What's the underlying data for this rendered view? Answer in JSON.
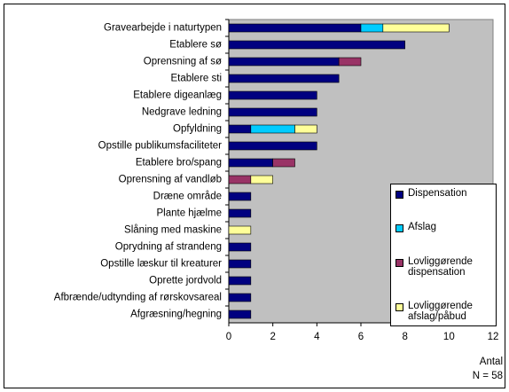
{
  "chart_data": {
    "type": "stacked-barh",
    "categories": [
      "Gravearbejde i naturtypen",
      "Etablere sø",
      "Oprensning af sø",
      "Etablere sti",
      "Etablere digeanlæg",
      "Nedgrave ledning",
      "Opfyldning",
      "Opstille publikumsfaciliteter",
      "Etablere bro/spang",
      "Oprensning af vandløb",
      "Dræne område",
      "Plante hjælme",
      "Slåning med maskine",
      "Oprydning af strandeng",
      "Opstille læskur til kreaturer",
      "Oprette jordvold",
      "Afbrænde/udtynding af rørskovsareal",
      "Afgræsning/hegning"
    ],
    "series": [
      {
        "name": "Dispensation",
        "color": "#000080",
        "values": [
          6,
          8,
          5,
          5,
          4,
          4,
          1,
          4,
          2,
          0,
          1,
          1,
          0,
          1,
          1,
          1,
          1,
          1
        ]
      },
      {
        "name": "Afslag",
        "color": "#00ccff",
        "values": [
          1,
          0,
          0,
          0,
          0,
          0,
          2,
          0,
          0,
          0,
          0,
          0,
          0,
          0,
          0,
          0,
          0,
          0
        ]
      },
      {
        "name": "Lovliggørende dispensation",
        "color": "#993366",
        "values": [
          0,
          0,
          1,
          0,
          0,
          0,
          0,
          0,
          1,
          1,
          0,
          0,
          0,
          0,
          0,
          0,
          0,
          0
        ]
      },
      {
        "name": "Lovliggørende afslag/påbud",
        "color": "#ffff99",
        "values": [
          3,
          0,
          0,
          0,
          0,
          0,
          1,
          0,
          0,
          1,
          0,
          0,
          1,
          0,
          0,
          0,
          0,
          0
        ]
      }
    ],
    "xlabel": "Antal",
    "note": "N = 58",
    "xlim": [
      0,
      12
    ],
    "xticks": [
      0,
      2,
      4,
      6,
      8,
      10,
      12
    ],
    "legend": "lower right"
  }
}
